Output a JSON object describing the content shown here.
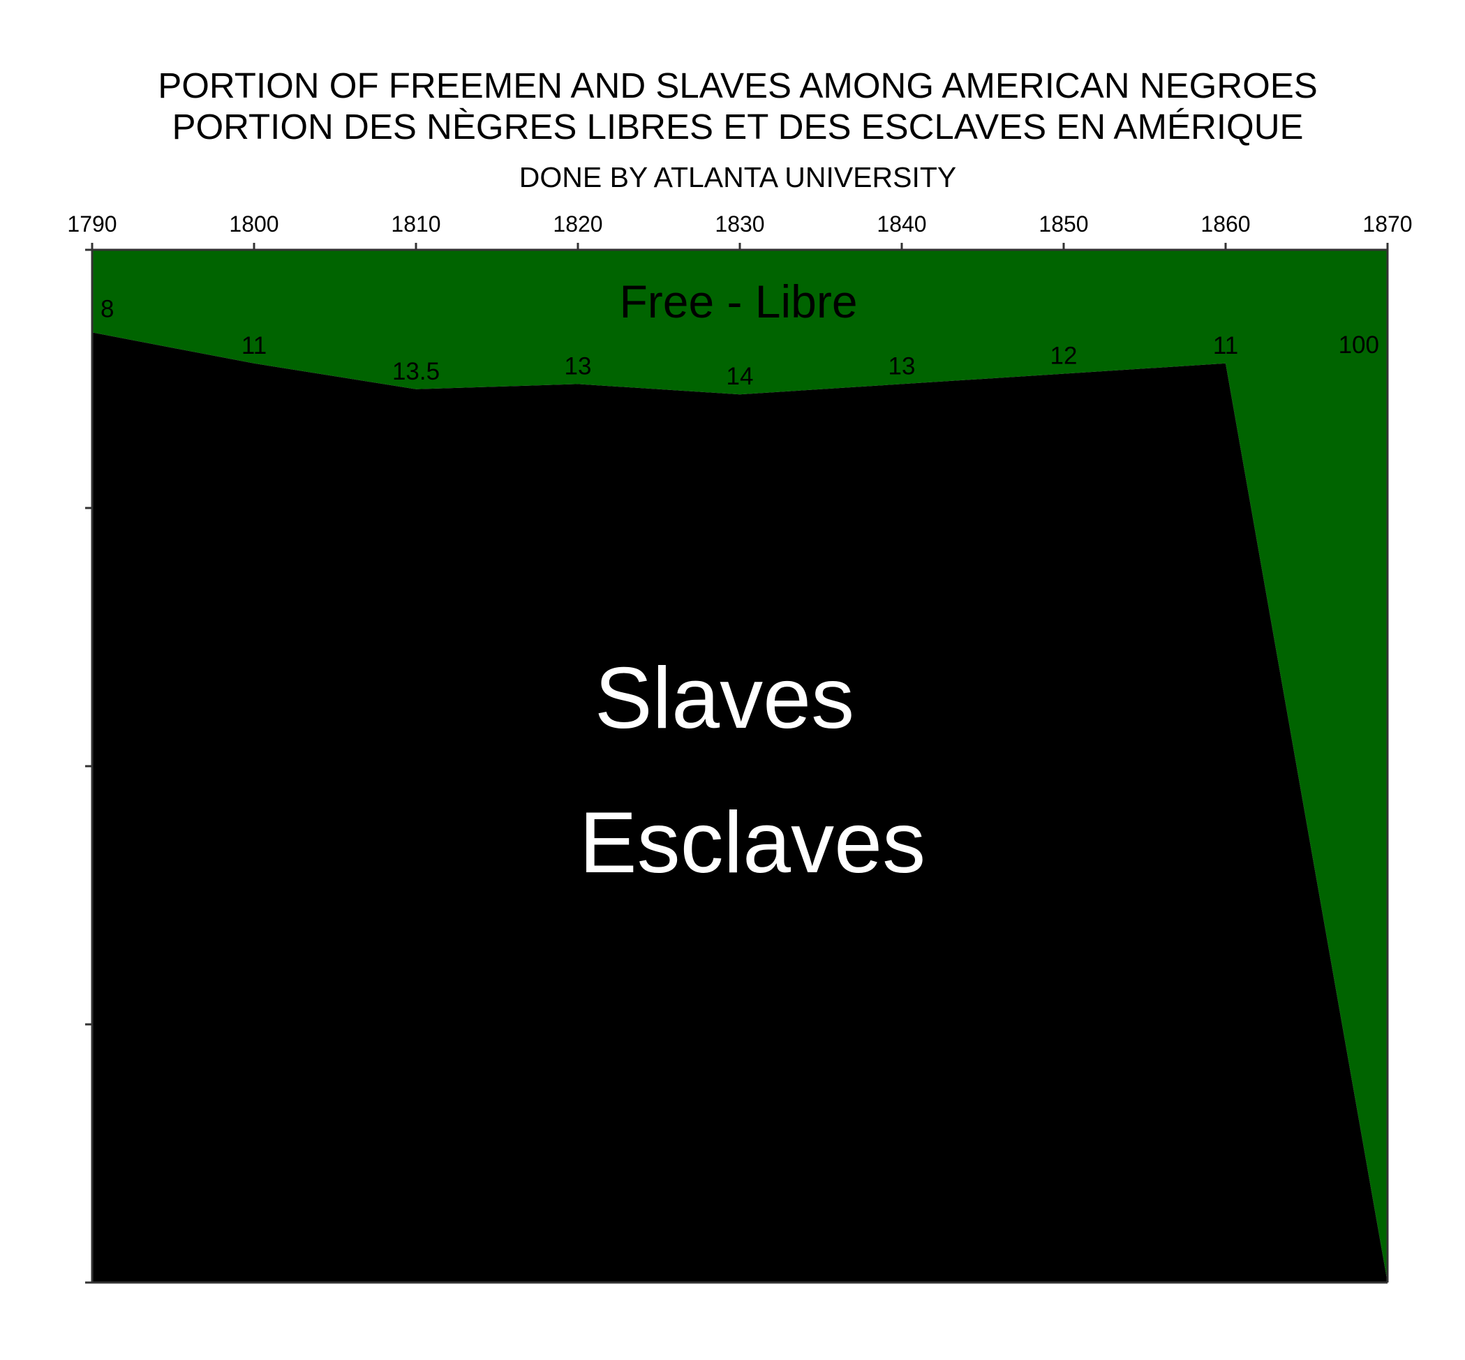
{
  "chart_data": {
    "type": "area",
    "title_lines": [
      "PORTION OF FREEMEN AND SLAVES AMONG AMERICAN NEGROES",
      "PORTION DES NÈGRES LIBRES ET DES ESCLAVES EN AMÉRIQUE"
    ],
    "subtitle": "DONE BY ATLANTA UNIVERSITY",
    "x": [
      1790,
      1800,
      1810,
      1820,
      1830,
      1840,
      1850,
      1860,
      1870
    ],
    "x_tick_labels": [
      "1790",
      "1800",
      "1810",
      "1820",
      "1830",
      "1840",
      "1850",
      "1860",
      "1870"
    ],
    "xlim": [
      1790,
      1870
    ],
    "ylim": [
      0,
      100
    ],
    "series": [
      {
        "name": "Free - Libre",
        "color": "#006400",
        "values": [
          8,
          11,
          13.5,
          13,
          14,
          13,
          12,
          11,
          100
        ]
      },
      {
        "name": "Slaves Esclaves",
        "color": "#000000",
        "values": [
          92,
          89,
          86.5,
          87,
          86,
          87,
          88,
          89,
          0
        ]
      }
    ],
    "data_labels": [
      "8",
      "11",
      "13.5",
      "13",
      "14",
      "13",
      "12",
      "11",
      "100"
    ],
    "region_labels": {
      "free": "Free - Libre",
      "slaves_line1": "Slaves",
      "slaves_line2": "Esclaves"
    },
    "stacked": true,
    "grid": false,
    "x_axis_position": "top"
  }
}
